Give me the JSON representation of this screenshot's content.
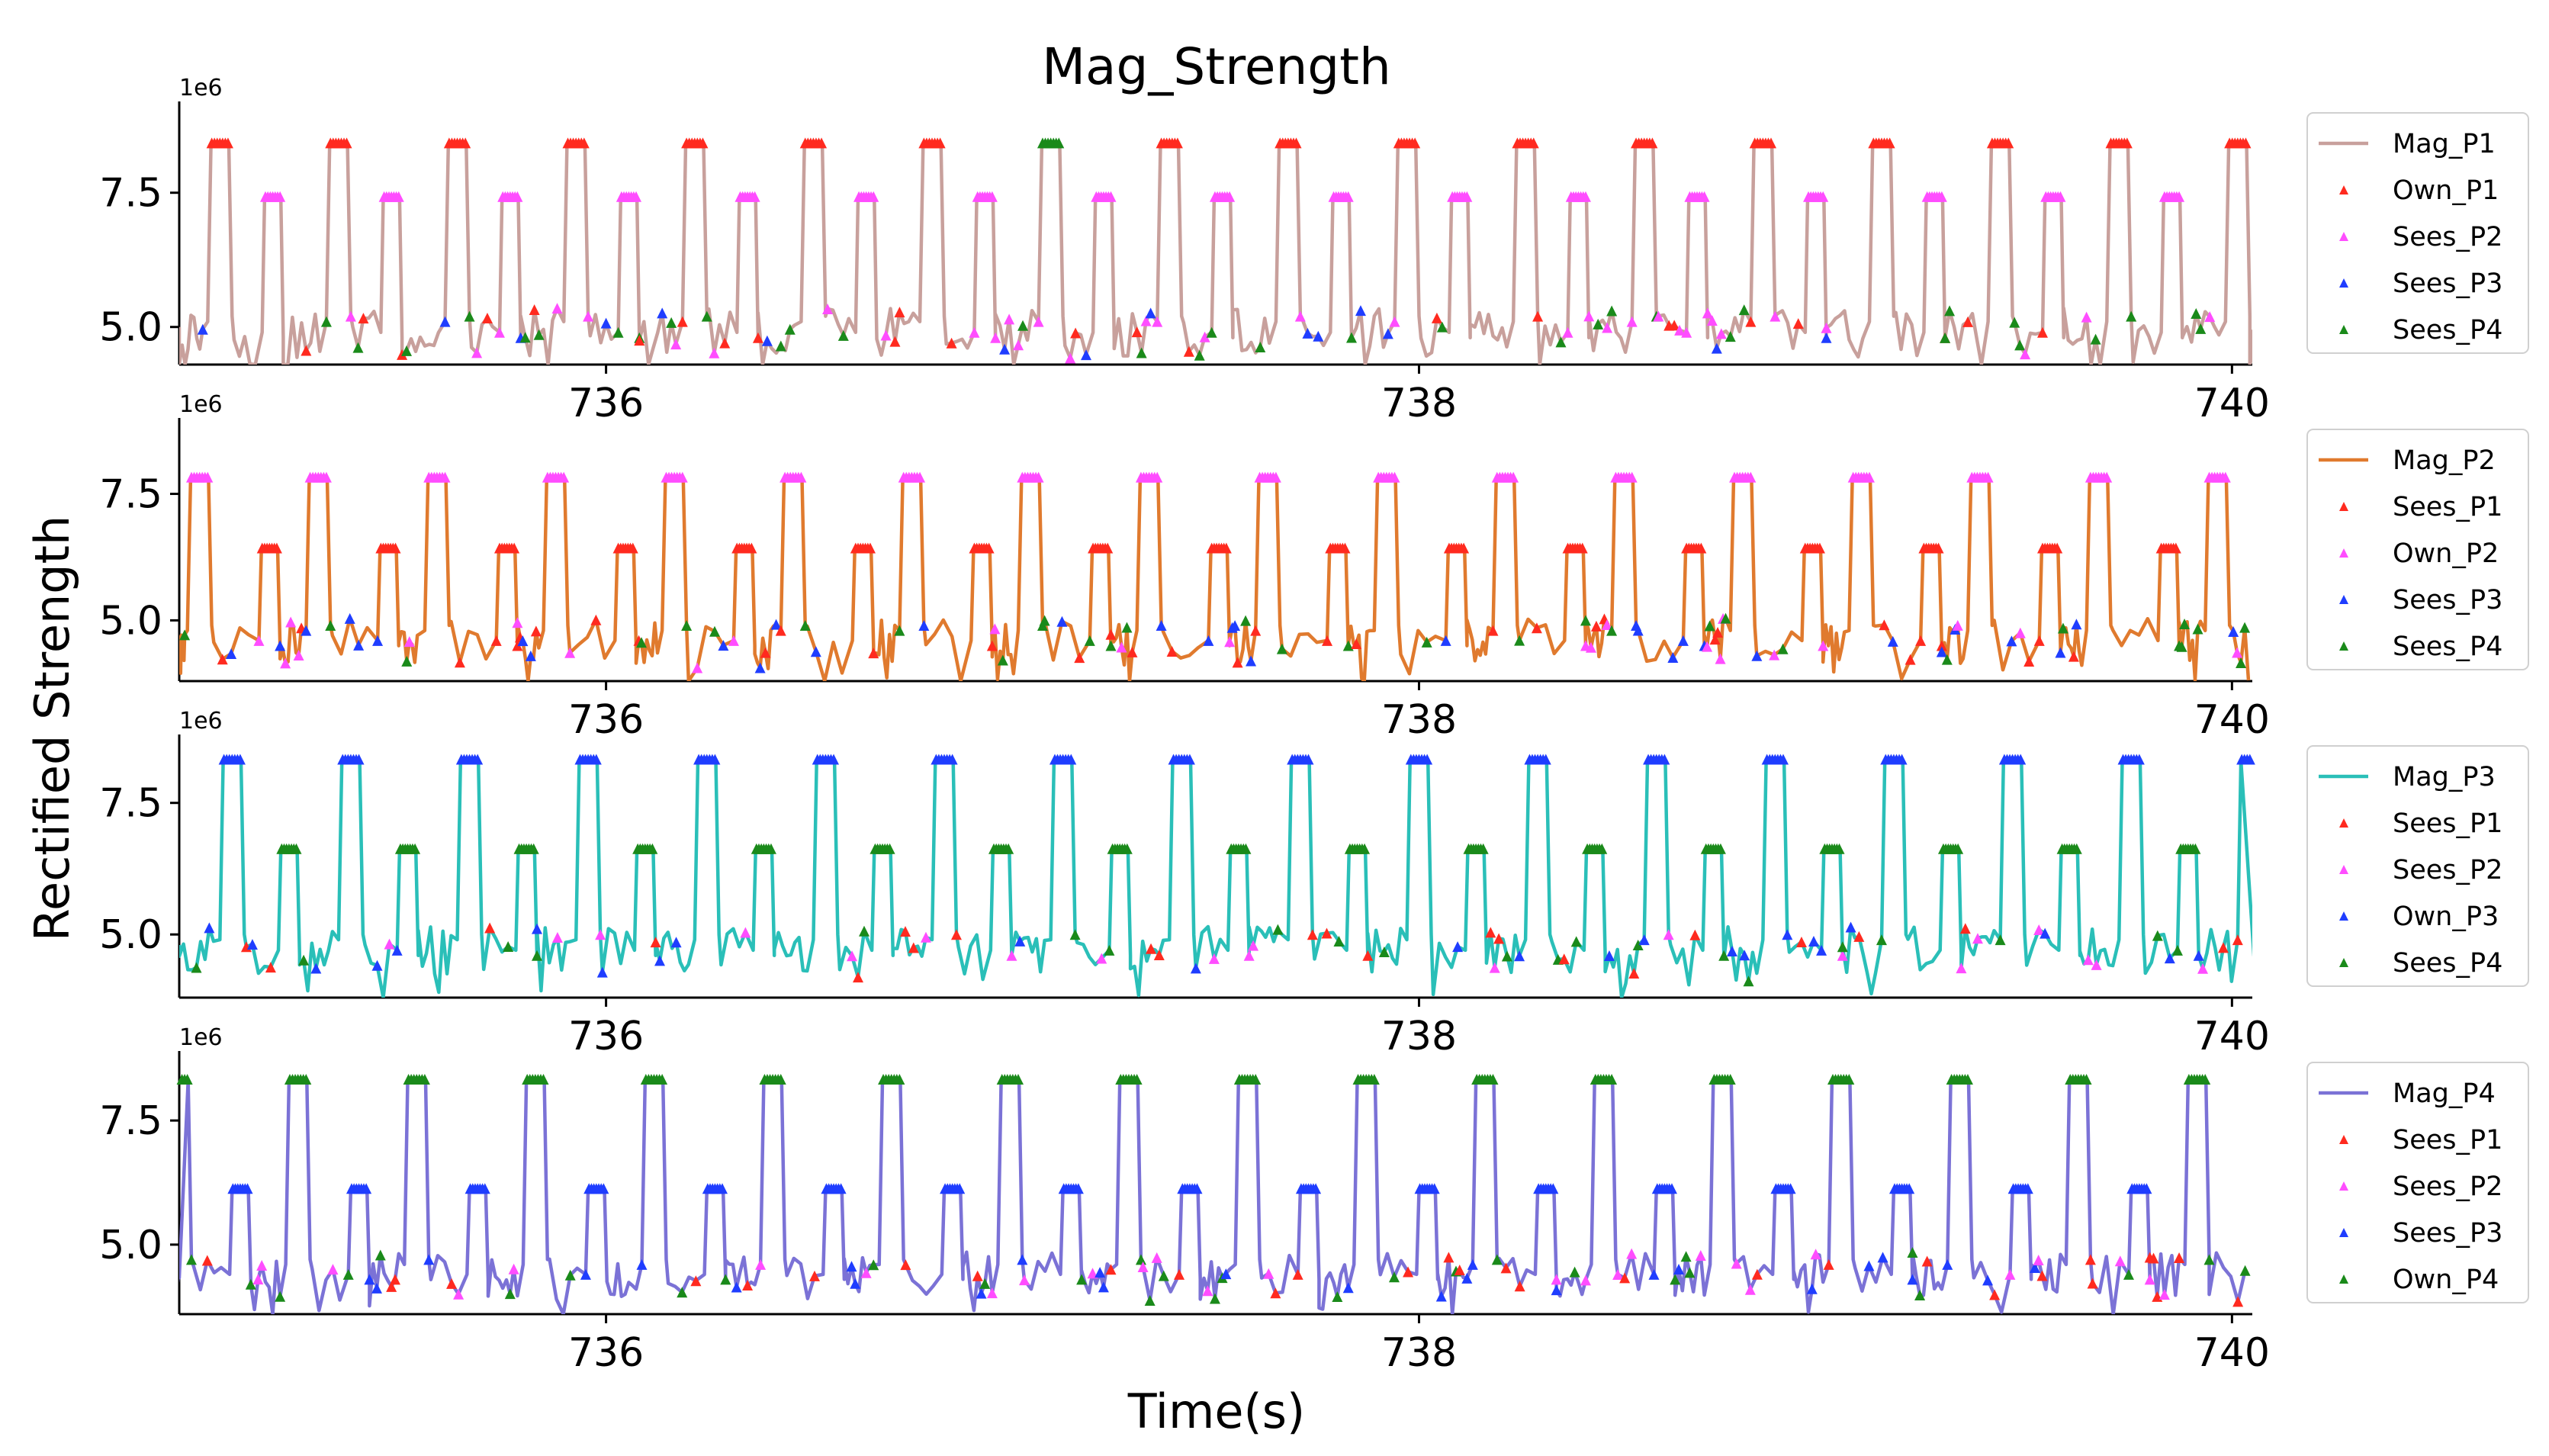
{
  "chart_data": {
    "type": "line",
    "title": "Mag_Strength",
    "xlabel": "Time(s)",
    "ylabel": "Rectified Strength",
    "xlim": [
      734.95,
      740.05
    ],
    "xticks": [
      736,
      738,
      740
    ],
    "xtick_labels": [
      "736",
      "738",
      "740"
    ],
    "ytick_labels": [
      "5.0",
      "7.5"
    ],
    "y_scale_label": "1e6",
    "x_period_s": 0.292,
    "panels": [
      {
        "name": "P1",
        "ylim": [
          4.3,
          9.2
        ],
        "yticks": [
          5.0,
          7.5
        ],
        "line": {
          "name": "Mag_P1",
          "color": "#c8a09c"
        },
        "legend": [
          "Mag_P1",
          "Own_P1",
          "Sees_P2",
          "Sees_P3",
          "Sees_P4"
        ],
        "levels": {
          "own_plateau": 8.4,
          "second_plateau": 7.4,
          "baseline": 4.9
        },
        "peak_colors": [
          "red",
          "red",
          "red",
          "red",
          "red",
          "red",
          "red",
          "green",
          "red",
          "red",
          "red",
          "red",
          "red",
          "red",
          "red",
          "red",
          "red",
          "red"
        ],
        "second_plateau_colors": [
          "magenta",
          "magenta",
          "magenta",
          "magenta",
          "magenta",
          "magenta",
          "magenta",
          "magenta",
          "magenta",
          "magenta",
          "magenta",
          "magenta",
          "magenta",
          "magenta",
          "magenta",
          "magenta",
          "magenta"
        ]
      },
      {
        "name": "P2",
        "ylim": [
          3.8,
          9.0
        ],
        "yticks": [
          5.0,
          7.5
        ],
        "line": {
          "name": "Mag_P2",
          "color": "#e07a2e"
        },
        "legend": [
          "Mag_P2",
          "Sees_P1",
          "Own_P2",
          "Sees_P3",
          "Sees_P4"
        ],
        "levels": {
          "own_plateau": 7.8,
          "second_plateau": 6.4,
          "baseline": 4.6
        },
        "peak_colors": [
          "magenta",
          "magenta",
          "magenta",
          "magenta",
          "magenta",
          "magenta",
          "magenta",
          "magenta",
          "magenta",
          "magenta",
          "magenta",
          "magenta",
          "magenta",
          "magenta",
          "magenta",
          "magenta",
          "magenta"
        ],
        "second_plateau_colors": [
          "red",
          "red",
          "red",
          "red",
          "red",
          "red",
          "red",
          "red",
          "red",
          "red",
          "red",
          "red",
          "red",
          "red",
          "red",
          "red",
          "red"
        ]
      },
      {
        "name": "P3",
        "ylim": [
          3.8,
          8.8
        ],
        "yticks": [
          5.0,
          7.5
        ],
        "line": {
          "name": "Mag_P3",
          "color": "#2abfb8"
        },
        "legend": [
          "Mag_P3",
          "Sees_P1",
          "Sees_P2",
          "Own_P3",
          "Sees_P4"
        ],
        "levels": {
          "own_plateau": 8.3,
          "second_plateau": 6.6,
          "baseline": 4.7
        },
        "peak_colors": [
          "blue",
          "blue",
          "blue",
          "blue",
          "blue",
          "blue",
          "blue",
          "blue",
          "blue",
          "blue",
          "blue",
          "blue",
          "blue",
          "blue",
          "blue",
          "blue",
          "blue"
        ],
        "second_plateau_colors": [
          "green",
          "green",
          "green",
          "green",
          "green",
          "green",
          "green",
          "green",
          "green",
          "green",
          "green",
          "green",
          "green",
          "green",
          "green",
          "green",
          "green"
        ]
      },
      {
        "name": "P4",
        "ylim": [
          3.6,
          8.9
        ],
        "yticks": [
          5.0,
          7.5
        ],
        "line": {
          "name": "Mag_P4",
          "color": "#7b72d6"
        },
        "legend": [
          "Mag_P4",
          "Sees_P1",
          "Sees_P2",
          "Sees_P3",
          "Own_P4"
        ],
        "levels": {
          "own_plateau": 8.3,
          "second_plateau": 6.1,
          "baseline": 4.4
        },
        "peak_colors": [
          "green",
          "green",
          "green",
          "green",
          "green",
          "green",
          "green",
          "green",
          "green",
          "green",
          "green",
          "green",
          "green",
          "green",
          "green",
          "green",
          "green",
          "green"
        ],
        "second_plateau_colors": [
          "blue",
          "blue",
          "blue",
          "blue",
          "blue",
          "blue",
          "blue",
          "blue",
          "blue",
          "blue",
          "blue",
          "blue",
          "blue",
          "blue",
          "blue",
          "blue",
          "blue"
        ]
      }
    ]
  },
  "marker_colors": {
    "red": "#ff2a1f",
    "magenta": "#ff4dff",
    "blue": "#1f3dff",
    "green": "#1a8a1a"
  }
}
